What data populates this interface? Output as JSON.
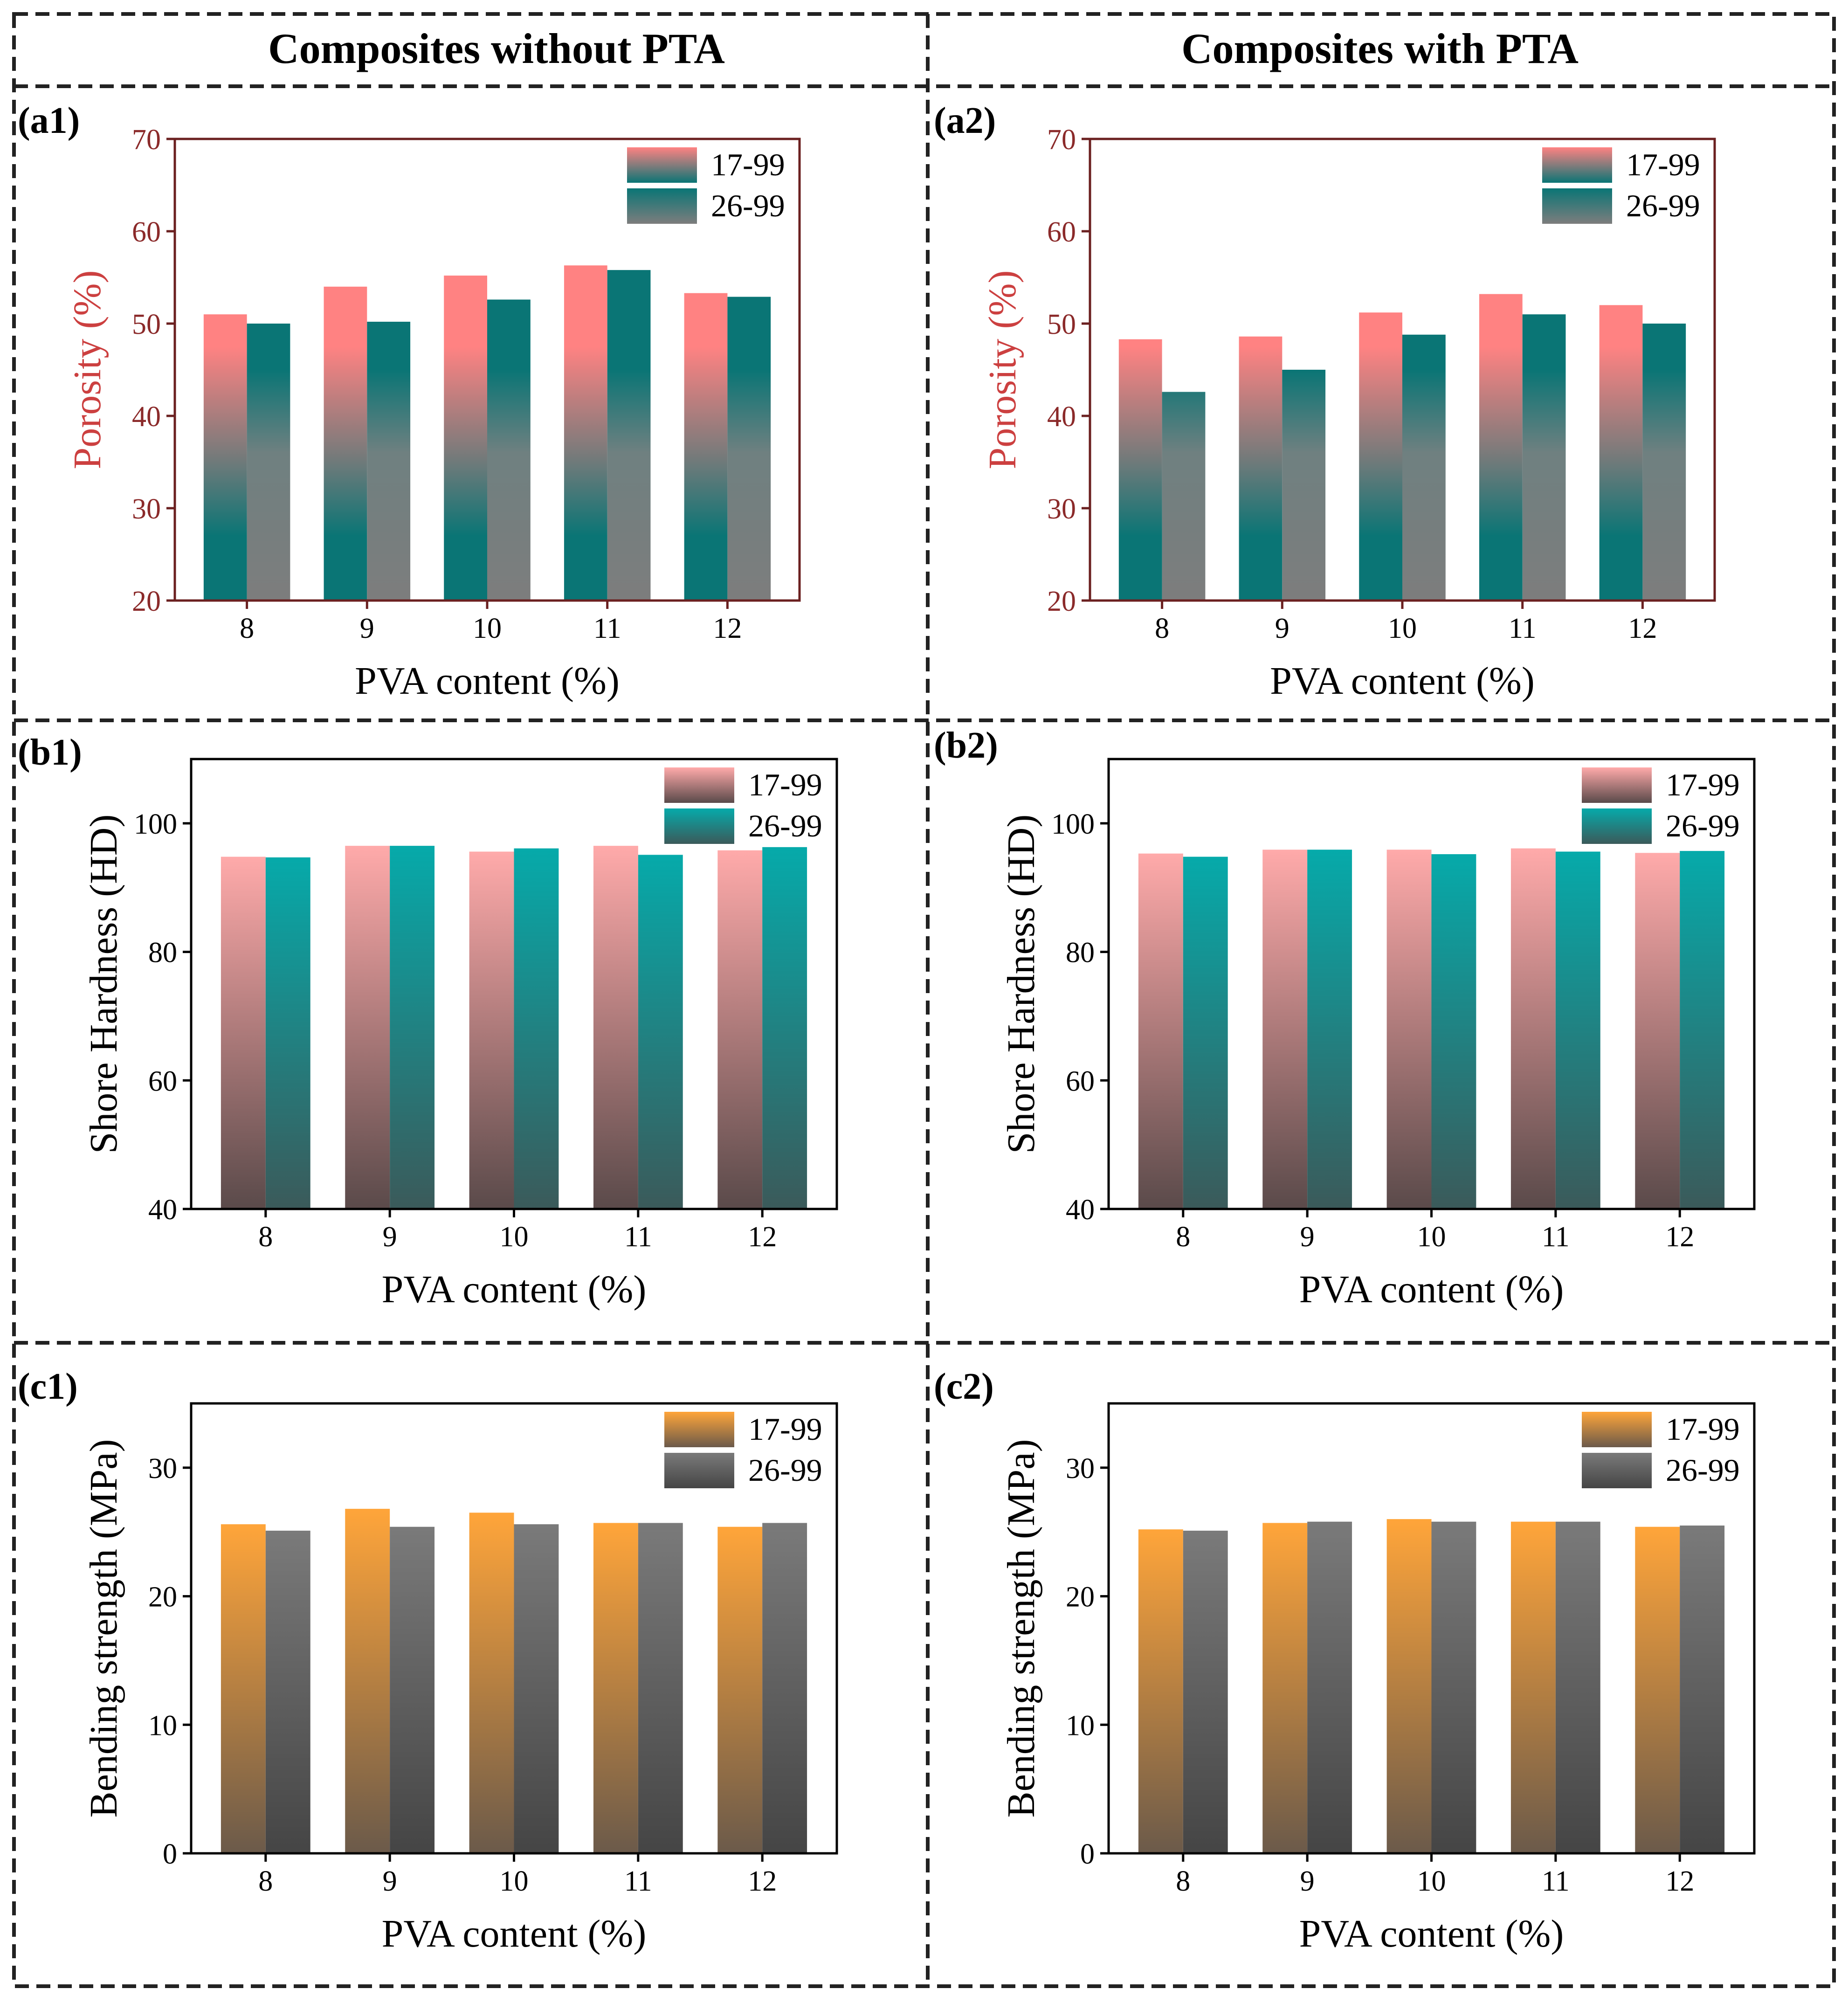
{
  "figure": {
    "headers": [
      "Composites without PTA",
      "Composites with PTA"
    ]
  },
  "legend_gradients": {
    "porosity": {
      "s1": [
        "#ff8282",
        "#0a7575"
      ],
      "s2": [
        "#0a7575",
        "#7d7d7d"
      ]
    },
    "hardness": {
      "s1": [
        "#ffaaaa",
        "#5a4a4a"
      ],
      "s2": [
        "#06aaaa",
        "#3b5a5a"
      ]
    },
    "bending": {
      "s1": [
        "#ffa53a",
        "#6b5a4a"
      ],
      "s2": [
        "#7a7a7a",
        "#454545"
      ]
    }
  },
  "chart_data": [
    {
      "id": "a1",
      "panel_label": "(a1)",
      "type": "bar",
      "xlabel": "PVA content (%)",
      "ylabel": "Porosity (%)",
      "categories": [
        "8",
        "9",
        "10",
        "11",
        "12"
      ],
      "ylim": [
        20,
        70
      ],
      "yticks": [
        20,
        30,
        40,
        50,
        60,
        70
      ],
      "tick_color": "#8b2a2a",
      "ylabel_color": "#cc4040",
      "frame_color": "#6b2020",
      "fill_style": "porosity",
      "series": [
        {
          "name": "17-99",
          "values": [
            51.0,
            54.0,
            55.2,
            56.3,
            53.3
          ]
        },
        {
          "name": "26-99",
          "values": [
            50.0,
            50.2,
            52.6,
            55.8,
            52.9
          ]
        }
      ]
    },
    {
      "id": "a2",
      "panel_label": "(a2)",
      "type": "bar",
      "xlabel": "PVA content (%)",
      "ylabel": "Porosity (%)",
      "categories": [
        "8",
        "9",
        "10",
        "11",
        "12"
      ],
      "ylim": [
        20,
        70
      ],
      "yticks": [
        20,
        30,
        40,
        50,
        60,
        70
      ],
      "tick_color": "#8b2a2a",
      "ylabel_color": "#cc4040",
      "frame_color": "#6b2020",
      "fill_style": "porosity",
      "series": [
        {
          "name": "17-99",
          "values": [
            48.3,
            48.6,
            51.2,
            53.2,
            52.0
          ]
        },
        {
          "name": "26-99",
          "values": [
            42.6,
            45.0,
            48.8,
            51.0,
            50.0
          ]
        }
      ]
    },
    {
      "id": "b1",
      "panel_label": "(b1)",
      "type": "bar",
      "xlabel": "PVA content (%)",
      "ylabel": "Shore Hardness (HD)",
      "categories": [
        "8",
        "9",
        "10",
        "11",
        "12"
      ],
      "ylim": [
        40,
        110
      ],
      "yticks": [
        40,
        60,
        80,
        100
      ],
      "tick_color": "#000000",
      "ylabel_color": "#000000",
      "frame_color": "#000000",
      "fill_style": "hardness",
      "series": [
        {
          "name": "17-99",
          "values": [
            94.8,
            96.5,
            95.6,
            96.5,
            95.8
          ]
        },
        {
          "name": "26-99",
          "values": [
            94.7,
            96.5,
            96.1,
            95.1,
            96.3
          ]
        }
      ]
    },
    {
      "id": "b2",
      "panel_label": "(b2)",
      "type": "bar",
      "xlabel": "PVA content (%)",
      "ylabel": "Shore Hardness (HD)",
      "categories": [
        "8",
        "9",
        "10",
        "11",
        "12"
      ],
      "ylim": [
        40,
        110
      ],
      "yticks": [
        40,
        60,
        80,
        100
      ],
      "tick_color": "#000000",
      "ylabel_color": "#000000",
      "frame_color": "#000000",
      "fill_style": "hardness",
      "series": [
        {
          "name": "17-99",
          "values": [
            95.3,
            95.9,
            95.9,
            96.1,
            95.4
          ]
        },
        {
          "name": "26-99",
          "values": [
            94.8,
            95.9,
            95.2,
            95.6,
            95.7
          ]
        }
      ]
    },
    {
      "id": "c1",
      "panel_label": "(c1)",
      "type": "bar",
      "xlabel": "PVA content (%)",
      "ylabel": "Bending strength (MPa)",
      "categories": [
        "8",
        "9",
        "10",
        "11",
        "12"
      ],
      "ylim": [
        0,
        35
      ],
      "yticks": [
        0,
        10,
        20,
        30
      ],
      "tick_color": "#000000",
      "ylabel_color": "#000000",
      "frame_color": "#000000",
      "fill_style": "bending",
      "series": [
        {
          "name": "17-99",
          "values": [
            25.6,
            26.8,
            26.5,
            25.7,
            25.4
          ]
        },
        {
          "name": "26-99",
          "values": [
            25.1,
            25.4,
            25.6,
            25.7,
            25.7
          ]
        }
      ]
    },
    {
      "id": "c2",
      "panel_label": "(c2)",
      "type": "bar",
      "xlabel": "PVA content (%)",
      "ylabel": "Bending strength (MPa)",
      "categories": [
        "8",
        "9",
        "10",
        "11",
        "12"
      ],
      "ylim": [
        0,
        35
      ],
      "yticks": [
        0,
        10,
        20,
        30
      ],
      "tick_color": "#000000",
      "ylabel_color": "#000000",
      "frame_color": "#000000",
      "fill_style": "bending",
      "series": [
        {
          "name": "17-99",
          "values": [
            25.2,
            25.7,
            26.0,
            25.8,
            25.4
          ]
        },
        {
          "name": "26-99",
          "values": [
            25.1,
            25.8,
            25.8,
            25.8,
            25.5
          ]
        }
      ]
    }
  ]
}
